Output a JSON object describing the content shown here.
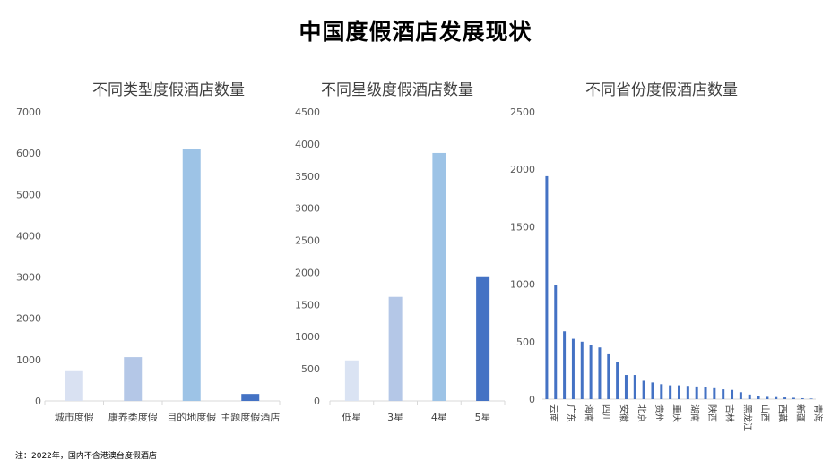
{
  "title": "中国度假酒店发展现状",
  "footnote": "注：2022年，国内不含港澳台度假酒店",
  "chart_data": [
    {
      "type": "bar",
      "title": "不同类型度假酒店数量",
      "categories": [
        "城市度假",
        "康养类度假",
        "目的地度假",
        "主题度假酒店"
      ],
      "values": [
        720,
        1060,
        6100,
        170
      ],
      "colors": [
        "#d9e1f2",
        "#b4c7e7",
        "#9dc3e6",
        "#4472c4"
      ],
      "ylim": [
        0,
        7000
      ],
      "yticks": [
        0,
        1000,
        2000,
        3000,
        4000,
        5000,
        6000,
        7000
      ],
      "grid": false,
      "legend": "none"
    },
    {
      "type": "bar",
      "title": "不同星级度假酒店数量",
      "categories": [
        "低星",
        "3星",
        "4星",
        "5星"
      ],
      "values": [
        630,
        1620,
        3860,
        1940
      ],
      "colors": [
        "#dae3f3",
        "#b4c7e7",
        "#9dc3e6",
        "#4472c4"
      ],
      "ylim": [
        0,
        4500
      ],
      "yticks": [
        0,
        500,
        1000,
        1500,
        2000,
        2500,
        3000,
        3500,
        4000,
        4500
      ],
      "grid": false,
      "legend": "none"
    },
    {
      "type": "bar",
      "title": "不同省份度假酒店数量",
      "categories": [
        "云南",
        "",
        "广东",
        "",
        "海南",
        "",
        "四川",
        "",
        "安徽",
        "",
        "北京",
        "",
        "贵州",
        "",
        "重庆",
        "",
        "湖南",
        "",
        "陕西",
        "",
        "吉林",
        "",
        "黑龙江",
        "",
        "山西",
        "",
        "西藏",
        "",
        "新疆",
        "",
        "青海"
      ],
      "values": [
        1940,
        990,
        590,
        525,
        500,
        470,
        450,
        390,
        320,
        210,
        210,
        160,
        145,
        130,
        120,
        120,
        115,
        110,
        105,
        95,
        85,
        80,
        60,
        40,
        25,
        20,
        18,
        15,
        12,
        8,
        5
      ],
      "color": "#4472c4",
      "ylim": [
        0,
        2500
      ],
      "yticks": [
        0,
        500,
        1000,
        1500,
        2000,
        2500
      ],
      "grid": false,
      "legend": "none"
    }
  ]
}
